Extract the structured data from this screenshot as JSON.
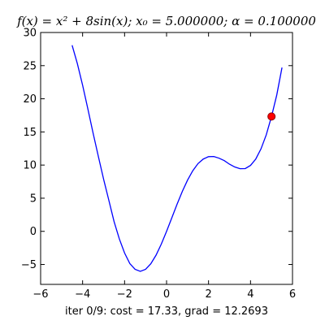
{
  "chart_data": {
    "type": "line",
    "title": "f(x) = x² + 8sin(x); x₀ = 5.000000; α = 0.100000",
    "xlabel": "iter 0/9: cost = 17.33, grad = 12.2693",
    "ylabel": "",
    "xlim": [
      -6,
      6
    ],
    "ylim": [
      -8,
      30
    ],
    "x_ticks": [
      -6,
      -4,
      -2,
      0,
      2,
      4,
      6
    ],
    "y_ticks": [
      -5,
      0,
      5,
      10,
      15,
      20,
      25,
      30
    ],
    "x_tick_labels": [
      "−6",
      "−4",
      "−2",
      "0",
      "2",
      "4",
      "6"
    ],
    "y_tick_labels": [
      "−5",
      "0",
      "5",
      "10",
      "15",
      "20",
      "25",
      "30"
    ],
    "grid": false,
    "series": [
      {
        "color": "#0000ff",
        "x": [
          -4.5,
          -4.25,
          -4.0,
          -3.75,
          -3.5,
          -3.25,
          -3.0,
          -2.75,
          -2.5,
          -2.25,
          -2.0,
          -1.75,
          -1.5,
          -1.25,
          -1.0,
          -0.75,
          -0.5,
          -0.25,
          0.0,
          0.25,
          0.5,
          0.75,
          1.0,
          1.25,
          1.5,
          1.75,
          2.0,
          2.25,
          2.5,
          2.75,
          3.0,
          3.25,
          3.5,
          3.75,
          4.0,
          4.25,
          4.5,
          4.75,
          5.0,
          5.25,
          5.5
        ],
        "y": [
          28.07,
          25.3,
          22.05,
          18.48,
          14.81,
          11.31,
          7.87,
          4.69,
          1.46,
          -1.14,
          -3.27,
          -4.86,
          -5.73,
          -6.03,
          -5.73,
          -4.89,
          -3.59,
          -1.92,
          0.0,
          2.04,
          4.09,
          6.02,
          7.73,
          9.15,
          10.23,
          10.91,
          11.27,
          11.29,
          11.04,
          10.67,
          10.13,
          9.71,
          9.45,
          9.47,
          9.95,
          10.91,
          12.45,
          14.56,
          17.33,
          20.57,
          24.71
        ]
      }
    ],
    "markers": [
      {
        "x": 5.0,
        "y": 17.33,
        "color": "#ff0000",
        "edge_color": "#8b0000"
      }
    ]
  }
}
